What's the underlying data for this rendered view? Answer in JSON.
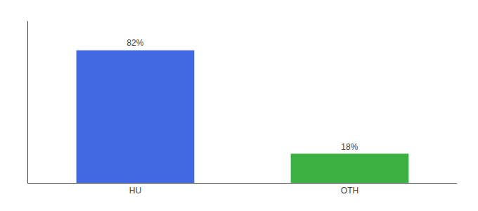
{
  "chart_data": {
    "type": "bar",
    "categories": [
      "HU",
      "OTH"
    ],
    "values": [
      82,
      18
    ],
    "value_labels": [
      "82%",
      "18%"
    ],
    "colors": [
      "#4169e1",
      "#3cb043"
    ],
    "ylim": [
      0,
      100
    ],
    "data_labels": true,
    "tick_labels": "x",
    "grid": false
  }
}
